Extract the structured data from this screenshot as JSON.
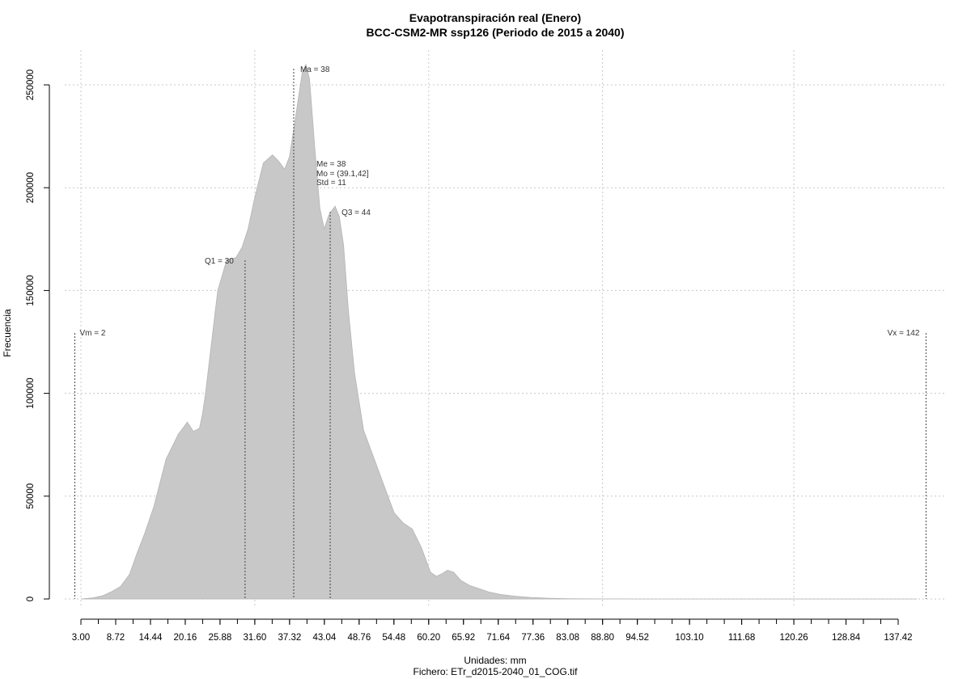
{
  "chart_data": {
    "type": "area",
    "title": "Evapotranspiración real (Enero)",
    "subtitle": "BCC-CSM2-MR ssp126 (Periodo de 2015 a 2040)",
    "xlabel": "Unidades: mm",
    "xlabel2": "Fichero: ETr_d2015-2040_01_COG.tif",
    "ylabel": "Frecuencia",
    "xlim": [
      0,
      145
    ],
    "ylim": [
      0,
      260000
    ],
    "x_ticks": [
      3.0,
      8.72,
      14.44,
      20.16,
      25.88,
      31.6,
      37.32,
      43.04,
      48.76,
      54.48,
      60.2,
      65.92,
      71.64,
      77.36,
      83.08,
      88.8,
      94.52,
      103.1,
      111.68,
      120.26,
      128.84,
      137.42
    ],
    "x_tick_labels": [
      "3.00",
      "8.72",
      "14.44",
      "20.16",
      "25.88",
      "31.60",
      "37.32",
      "43.04",
      "48.76",
      "54.48",
      "60.20",
      "65.92",
      "71.64",
      "77.36",
      "83.08",
      "88.80",
      "94.52",
      "103.10",
      "111.68",
      "120.26",
      "128.84",
      "137.42"
    ],
    "y_ticks": [
      0,
      50000,
      100000,
      150000,
      200000,
      250000
    ],
    "y_tick_labels": [
      "0",
      "50000",
      "100000",
      "150000",
      "200000",
      "250000"
    ],
    "grid": true,
    "fill_color": "#c8c8c8",
    "series": [
      {
        "x": [
          3.0,
          5.0,
          6.5,
          8.0,
          9.5,
          11.0,
          12.2,
          13.5,
          15.0,
          17.0,
          19.0,
          20.5,
          21.5,
          22.5,
          23.0,
          23.5,
          24.5,
          25.5,
          27.0,
          28.5,
          29.5,
          30.5,
          31.5,
          33.0,
          34.5,
          35.5,
          36.5,
          37.3,
          38.5,
          39.4,
          40.0,
          40.6,
          41.5,
          42.3,
          43.0,
          43.8,
          44.8,
          45.5,
          46.2,
          47.0,
          48.0,
          49.5,
          51.0,
          53.0,
          54.5,
          56.0,
          57.5,
          59.0,
          60.5,
          61.5,
          62.5,
          63.3,
          64.3,
          65.5,
          67.0,
          68.5,
          70.0,
          72.0,
          74.5,
          77.0,
          80.0,
          83.0,
          85.0,
          88.0,
          90.0,
          95.0,
          100.0,
          110.0,
          120.0,
          130.0,
          140.5
        ],
        "values": [
          0,
          500,
          1500,
          3500,
          6000,
          12000,
          22000,
          32000,
          45000,
          68000,
          80000,
          86000,
          81500,
          83000,
          90000,
          100000,
          125000,
          150000,
          165000,
          166000,
          171000,
          180000,
          194000,
          212000,
          216000,
          213000,
          209000,
          215000,
          238000,
          256000,
          260000,
          253000,
          218000,
          190000,
          180000,
          187000,
          191000,
          186000,
          172000,
          140000,
          110000,
          82000,
          70000,
          54000,
          42000,
          37000,
          34000,
          25000,
          13000,
          11000,
          12500,
          14000,
          13000,
          9000,
          6500,
          5000,
          3500,
          2200,
          1300,
          700,
          350,
          150,
          80,
          40,
          20,
          10,
          5,
          2,
          1,
          0,
          0
        ]
      }
    ],
    "markers": [
      {
        "x": 2,
        "label": "Vm = 2"
      },
      {
        "x": 142,
        "label": "Vx = 142"
      },
      {
        "x": 30,
        "label": "Q1 = 30"
      },
      {
        "x": 38,
        "label": "Ma = 38"
      },
      {
        "x": 44,
        "label": "Q3 = 44"
      }
    ],
    "stats": {
      "me": "Me = 38",
      "mo": "Mo = (39.1,42]",
      "std": "Std = 11"
    }
  }
}
